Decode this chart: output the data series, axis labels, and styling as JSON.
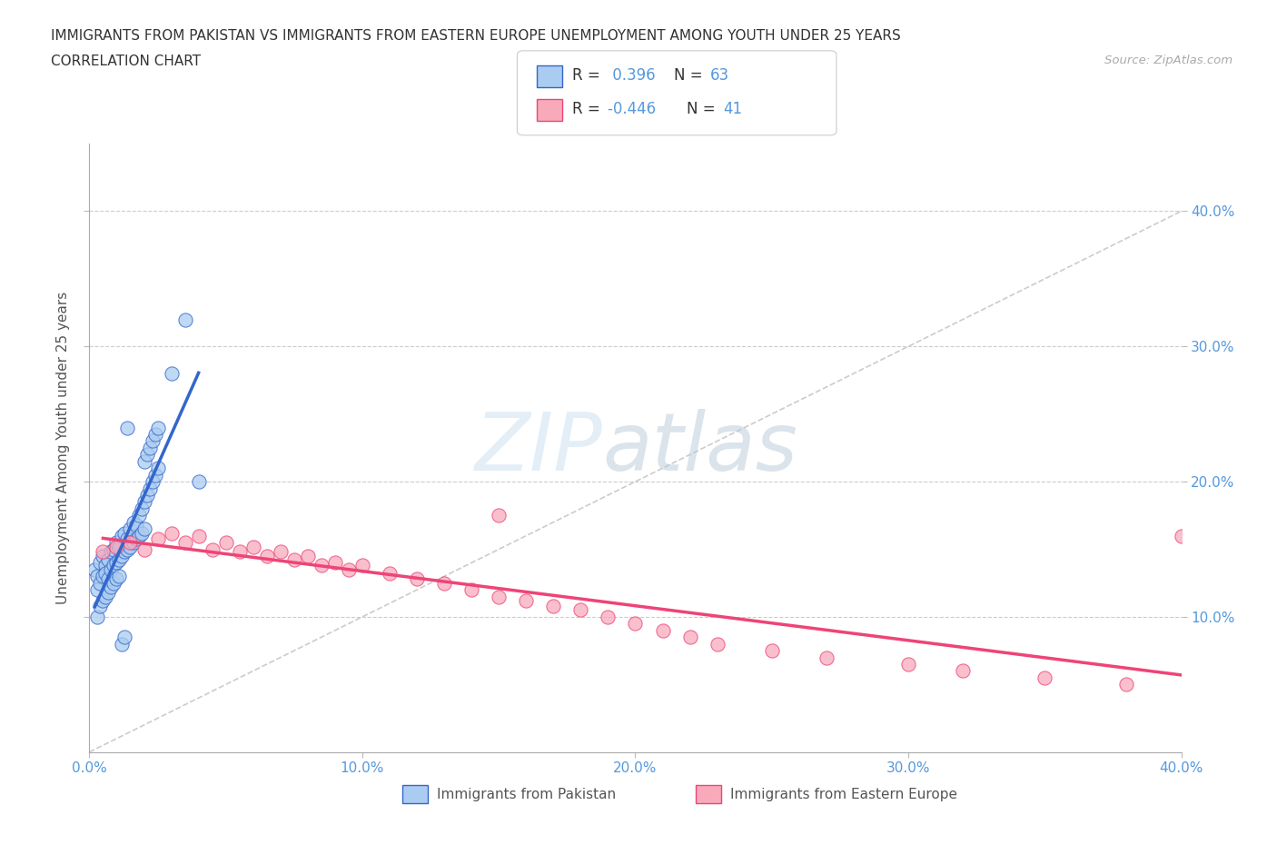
{
  "title_line1": "IMMIGRANTS FROM PAKISTAN VS IMMIGRANTS FROM EASTERN EUROPE UNEMPLOYMENT AMONG YOUTH UNDER 25 YEARS",
  "title_line2": "CORRELATION CHART",
  "source_text": "Source: ZipAtlas.com",
  "ylabel": "Unemployment Among Youth under 25 years",
  "xlim": [
    0.0,
    0.4
  ],
  "ylim": [
    0.0,
    0.45
  ],
  "x_tick_labels": [
    "0.0%",
    "10.0%",
    "20.0%",
    "30.0%",
    "40.0%"
  ],
  "x_tick_vals": [
    0.0,
    0.1,
    0.2,
    0.3,
    0.4
  ],
  "y_tick_labels": [
    "10.0%",
    "20.0%",
    "30.0%",
    "40.0%"
  ],
  "y_tick_vals": [
    0.1,
    0.2,
    0.3,
    0.4
  ],
  "color_pakistan": "#aaccf0",
  "color_eastern_europe": "#f8aabb",
  "color_trendline_pakistan": "#3366cc",
  "color_trendline_eastern_europe": "#ee4477",
  "color_diagonal": "#cccccc",
  "pk_x": [
    0.002,
    0.003,
    0.004,
    0.005,
    0.006,
    0.007,
    0.008,
    0.009,
    0.01,
    0.011,
    0.012,
    0.013,
    0.014,
    0.015,
    0.016,
    0.017,
    0.018,
    0.019,
    0.02,
    0.021,
    0.022,
    0.023,
    0.024,
    0.025,
    0.003,
    0.004,
    0.005,
    0.006,
    0.007,
    0.008,
    0.009,
    0.01,
    0.011,
    0.012,
    0.013,
    0.014,
    0.015,
    0.016,
    0.017,
    0.018,
    0.019,
    0.02,
    0.003,
    0.004,
    0.014,
    0.005,
    0.006,
    0.007,
    0.008,
    0.009,
    0.01,
    0.011,
    0.012,
    0.013,
    0.02,
    0.021,
    0.022,
    0.023,
    0.024,
    0.025,
    0.03,
    0.035,
    0.04
  ],
  "pk_y": [
    0.135,
    0.13,
    0.14,
    0.145,
    0.138,
    0.142,
    0.148,
    0.15,
    0.155,
    0.152,
    0.16,
    0.162,
    0.158,
    0.165,
    0.17,
    0.168,
    0.175,
    0.18,
    0.185,
    0.19,
    0.195,
    0.2,
    0.205,
    0.21,
    0.12,
    0.125,
    0.13,
    0.132,
    0.128,
    0.135,
    0.138,
    0.14,
    0.142,
    0.145,
    0.148,
    0.15,
    0.152,
    0.155,
    0.158,
    0.16,
    0.162,
    0.165,
    0.1,
    0.108,
    0.24,
    0.112,
    0.115,
    0.118,
    0.122,
    0.125,
    0.128,
    0.13,
    0.08,
    0.085,
    0.215,
    0.22,
    0.225,
    0.23,
    0.235,
    0.24,
    0.28,
    0.32,
    0.2
  ],
  "ee_x": [
    0.005,
    0.01,
    0.015,
    0.02,
    0.025,
    0.03,
    0.035,
    0.04,
    0.045,
    0.05,
    0.055,
    0.06,
    0.065,
    0.07,
    0.075,
    0.08,
    0.085,
    0.09,
    0.095,
    0.1,
    0.11,
    0.12,
    0.13,
    0.14,
    0.15,
    0.16,
    0.17,
    0.18,
    0.19,
    0.2,
    0.21,
    0.22,
    0.23,
    0.25,
    0.27,
    0.3,
    0.32,
    0.35,
    0.38,
    0.4,
    0.15
  ],
  "ee_y": [
    0.148,
    0.152,
    0.155,
    0.15,
    0.158,
    0.162,
    0.155,
    0.16,
    0.15,
    0.155,
    0.148,
    0.152,
    0.145,
    0.148,
    0.142,
    0.145,
    0.138,
    0.14,
    0.135,
    0.138,
    0.132,
    0.128,
    0.125,
    0.12,
    0.115,
    0.112,
    0.108,
    0.105,
    0.1,
    0.095,
    0.09,
    0.085,
    0.08,
    0.075,
    0.07,
    0.065,
    0.06,
    0.055,
    0.05,
    0.16,
    0.175
  ]
}
